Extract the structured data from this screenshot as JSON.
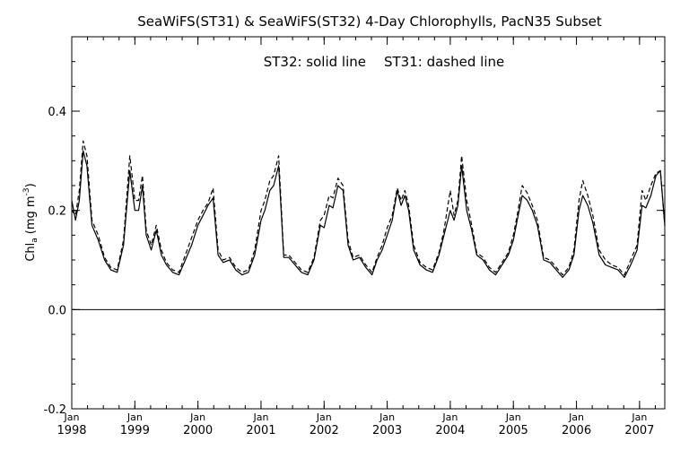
{
  "chart_data": {
    "type": "line",
    "title": "SeaWiFS(ST31) & SeaWiFS(ST32) 4-Day Chlorophylls, PacN35 Subset",
    "annotation_solid": "ST32: solid line",
    "annotation_dashed": "ST31: dashed line",
    "ylabel_main": "Chl",
    "ylabel_sub": "a",
    "ylabel_units": "(mg m",
    "ylabel_exp": "-3",
    "ylabel_close": ")",
    "ylim": [
      -0.2,
      0.55
    ],
    "yticks": [
      {
        "value": -0.2,
        "label": "-0.2"
      },
      {
        "value": 0.0,
        "label": "0.0"
      },
      {
        "value": 0.2,
        "label": "0.2"
      },
      {
        "value": 0.4,
        "label": "0.4"
      }
    ],
    "xlim": [
      1998.0,
      2007.4
    ],
    "xticks": [
      {
        "value": 1998,
        "month": "Jan",
        "year": "1998"
      },
      {
        "value": 1999,
        "month": "Jan",
        "year": "1999"
      },
      {
        "value": 2000,
        "month": "Jan",
        "year": "2000"
      },
      {
        "value": 2001,
        "month": "Jan",
        "year": "2001"
      },
      {
        "value": 2002,
        "month": "Jan",
        "year": "2002"
      },
      {
        "value": 2003,
        "month": "Jan",
        "year": "2003"
      },
      {
        "value": 2004,
        "month": "Jan",
        "year": "2004"
      },
      {
        "value": 2005,
        "month": "Jan",
        "year": "2005"
      },
      {
        "value": 2006,
        "month": "Jan",
        "year": "2006"
      },
      {
        "value": 2007,
        "month": "Jan",
        "year": "2007"
      }
    ],
    "series": [
      {
        "name": "ST32",
        "style": "solid",
        "color": "#000000",
        "x": [
          1998.0,
          1998.06,
          1998.12,
          1998.18,
          1998.24,
          1998.32,
          1998.42,
          1998.52,
          1998.62,
          1998.72,
          1998.82,
          1998.92,
          1999.0,
          1999.06,
          1999.12,
          1999.18,
          1999.26,
          1999.34,
          1999.42,
          1999.5,
          1999.6,
          1999.7,
          1999.8,
          1999.9,
          2000.0,
          2000.08,
          2000.16,
          2000.24,
          2000.32,
          2000.4,
          2000.5,
          2000.6,
          2000.7,
          2000.8,
          2000.9,
          2001.0,
          2001.06,
          2001.14,
          2001.2,
          2001.28,
          2001.36,
          2001.44,
          2001.54,
          2001.64,
          2001.74,
          2001.84,
          2001.94,
          2002.0,
          2002.08,
          2002.14,
          2002.22,
          2002.3,
          2002.38,
          2002.46,
          2002.56,
          2002.66,
          2002.76,
          2002.84,
          2002.92,
          2003.0,
          2003.08,
          2003.16,
          2003.22,
          2003.28,
          2003.34,
          2003.42,
          2003.52,
          2003.62,
          2003.72,
          2003.82,
          2003.9,
          2004.0,
          2004.06,
          2004.12,
          2004.18,
          2004.26,
          2004.34,
          2004.42,
          2004.52,
          2004.62,
          2004.72,
          2004.82,
          2004.92,
          2005.0,
          2005.06,
          2005.14,
          2005.22,
          2005.3,
          2005.38,
          2005.48,
          2005.58,
          2005.68,
          2005.78,
          2005.88,
          2005.96,
          2006.04,
          2006.1,
          2006.18,
          2006.26,
          2006.36,
          2006.46,
          2006.56,
          2006.66,
          2006.76,
          2006.86,
          2006.96,
          2007.04,
          2007.1,
          2007.18,
          2007.26,
          2007.33,
          2007.4
        ],
        "y": [
          0.22,
          0.18,
          0.22,
          0.32,
          0.29,
          0.17,
          0.14,
          0.1,
          0.08,
          0.075,
          0.13,
          0.28,
          0.2,
          0.2,
          0.25,
          0.15,
          0.12,
          0.16,
          0.11,
          0.09,
          0.075,
          0.07,
          0.1,
          0.13,
          0.17,
          0.19,
          0.21,
          0.225,
          0.11,
          0.095,
          0.1,
          0.08,
          0.07,
          0.075,
          0.11,
          0.18,
          0.2,
          0.24,
          0.25,
          0.29,
          0.105,
          0.105,
          0.09,
          0.075,
          0.07,
          0.1,
          0.17,
          0.165,
          0.21,
          0.205,
          0.25,
          0.24,
          0.13,
          0.1,
          0.105,
          0.085,
          0.07,
          0.1,
          0.12,
          0.15,
          0.18,
          0.24,
          0.21,
          0.23,
          0.2,
          0.12,
          0.09,
          0.08,
          0.075,
          0.11,
          0.15,
          0.2,
          0.18,
          0.21,
          0.29,
          0.2,
          0.16,
          0.11,
          0.1,
          0.08,
          0.07,
          0.09,
          0.11,
          0.14,
          0.18,
          0.23,
          0.22,
          0.2,
          0.17,
          0.1,
          0.095,
          0.08,
          0.065,
          0.08,
          0.11,
          0.2,
          0.23,
          0.21,
          0.175,
          0.11,
          0.09,
          0.085,
          0.08,
          0.065,
          0.09,
          0.12,
          0.21,
          0.205,
          0.23,
          0.27,
          0.28,
          0.17
        ]
      },
      {
        "name": "ST31",
        "style": "dashed",
        "color": "#000000",
        "x": [
          1998.0,
          1998.06,
          1998.12,
          1998.18,
          1998.24,
          1998.32,
          1998.42,
          1998.52,
          1998.62,
          1998.72,
          1998.82,
          1998.92,
          1999.0,
          1999.06,
          1999.12,
          1999.18,
          1999.26,
          1999.34,
          1999.42,
          1999.5,
          1999.6,
          1999.7,
          1999.8,
          1999.9,
          2000.0,
          2000.08,
          2000.16,
          2000.24,
          2000.32,
          2000.4,
          2000.5,
          2000.6,
          2000.7,
          2000.8,
          2000.9,
          2001.0,
          2001.06,
          2001.14,
          2001.2,
          2001.28,
          2001.36,
          2001.44,
          2001.54,
          2001.64,
          2001.74,
          2001.84,
          2001.94,
          2002.0,
          2002.08,
          2002.14,
          2002.22,
          2002.3,
          2002.38,
          2002.46,
          2002.56,
          2002.66,
          2002.76,
          2002.84,
          2002.92,
          2003.0,
          2003.08,
          2003.16,
          2003.22,
          2003.28,
          2003.34,
          2003.42,
          2003.52,
          2003.62,
          2003.72,
          2003.82,
          2003.9,
          2004.0,
          2004.06,
          2004.12,
          2004.18,
          2004.26,
          2004.34,
          2004.42,
          2004.52,
          2004.62,
          2004.72,
          2004.82,
          2004.92,
          2005.0,
          2005.06,
          2005.14,
          2005.22,
          2005.3,
          2005.38,
          2005.48,
          2005.58,
          2005.68,
          2005.78,
          2005.88,
          2005.96,
          2006.04,
          2006.1,
          2006.18,
          2006.26,
          2006.36,
          2006.46,
          2006.56,
          2006.66,
          2006.76,
          2006.86,
          2006.96,
          2007.04,
          2007.1,
          2007.18,
          2007.26,
          2007.33,
          2007.4
        ],
        "y": [
          0.2,
          0.19,
          0.24,
          0.34,
          0.31,
          0.18,
          0.15,
          0.105,
          0.085,
          0.08,
          0.14,
          0.31,
          0.22,
          0.22,
          0.27,
          0.16,
          0.13,
          0.17,
          0.12,
          0.095,
          0.08,
          0.075,
          0.11,
          0.145,
          0.18,
          0.2,
          0.215,
          0.245,
          0.12,
          0.1,
          0.105,
          0.085,
          0.075,
          0.08,
          0.12,
          0.2,
          0.22,
          0.26,
          0.27,
          0.31,
          0.11,
          0.11,
          0.095,
          0.08,
          0.075,
          0.105,
          0.18,
          0.19,
          0.23,
          0.225,
          0.265,
          0.25,
          0.14,
          0.105,
          0.11,
          0.09,
          0.075,
          0.105,
          0.13,
          0.165,
          0.19,
          0.245,
          0.22,
          0.24,
          0.21,
          0.13,
          0.095,
          0.085,
          0.08,
          0.115,
          0.16,
          0.24,
          0.19,
          0.22,
          0.31,
          0.22,
          0.17,
          0.115,
          0.105,
          0.085,
          0.075,
          0.095,
          0.115,
          0.15,
          0.19,
          0.25,
          0.235,
          0.21,
          0.18,
          0.105,
          0.1,
          0.085,
          0.07,
          0.085,
          0.12,
          0.22,
          0.26,
          0.23,
          0.19,
          0.12,
          0.1,
          0.09,
          0.085,
          0.07,
          0.1,
          0.13,
          0.24,
          0.22,
          0.25,
          0.275,
          0.28,
          0.17
        ]
      }
    ],
    "zero_line": 0.0,
    "grid": false
  }
}
